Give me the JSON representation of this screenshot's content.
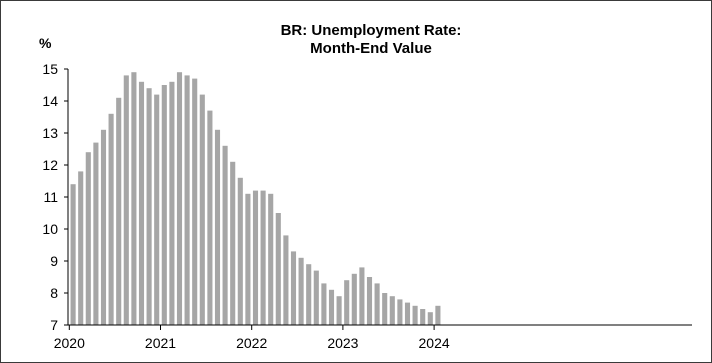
{
  "chart_data": {
    "type": "bar",
    "title_lines": [
      "BR: Unemployment Rate:",
      "Month-End Value"
    ],
    "ylabel": "%",
    "xlabel": "",
    "ylim": [
      7,
      15
    ],
    "yticks": [
      7,
      8,
      9,
      10,
      11,
      12,
      13,
      14,
      15
    ],
    "xticks": [
      "2020",
      "2021",
      "2022",
      "2023",
      "2024"
    ],
    "grid": false,
    "bar_color": "#a6a6a6",
    "x": [
      "2020-01",
      "2020-02",
      "2020-03",
      "2020-04",
      "2020-05",
      "2020-06",
      "2020-07",
      "2020-08",
      "2020-09",
      "2020-10",
      "2020-11",
      "2020-12",
      "2021-01",
      "2021-02",
      "2021-03",
      "2021-04",
      "2021-05",
      "2021-06",
      "2021-07",
      "2021-08",
      "2021-09",
      "2021-10",
      "2021-11",
      "2021-12",
      "2022-01",
      "2022-02",
      "2022-03",
      "2022-04",
      "2022-05",
      "2022-06",
      "2022-07",
      "2022-08",
      "2022-09",
      "2022-10",
      "2022-11",
      "2022-12",
      "2023-01",
      "2023-02",
      "2023-03",
      "2023-04",
      "2023-05",
      "2023-06",
      "2023-07",
      "2023-08",
      "2023-09",
      "2023-10",
      "2023-11",
      "2023-12",
      "2024-01"
    ],
    "values": [
      11.4,
      11.8,
      12.4,
      12.7,
      13.1,
      13.6,
      14.1,
      14.8,
      14.9,
      14.6,
      14.4,
      14.2,
      14.5,
      14.6,
      14.9,
      14.8,
      14.7,
      14.2,
      13.7,
      13.1,
      12.6,
      12.1,
      11.6,
      11.1,
      11.2,
      11.2,
      11.1,
      10.5,
      9.8,
      9.3,
      9.1,
      8.9,
      8.7,
      8.3,
      8.1,
      7.9,
      8.4,
      8.6,
      8.8,
      8.5,
      8.3,
      8.0,
      7.9,
      7.8,
      7.7,
      7.6,
      7.5,
      7.4,
      7.6
    ]
  }
}
